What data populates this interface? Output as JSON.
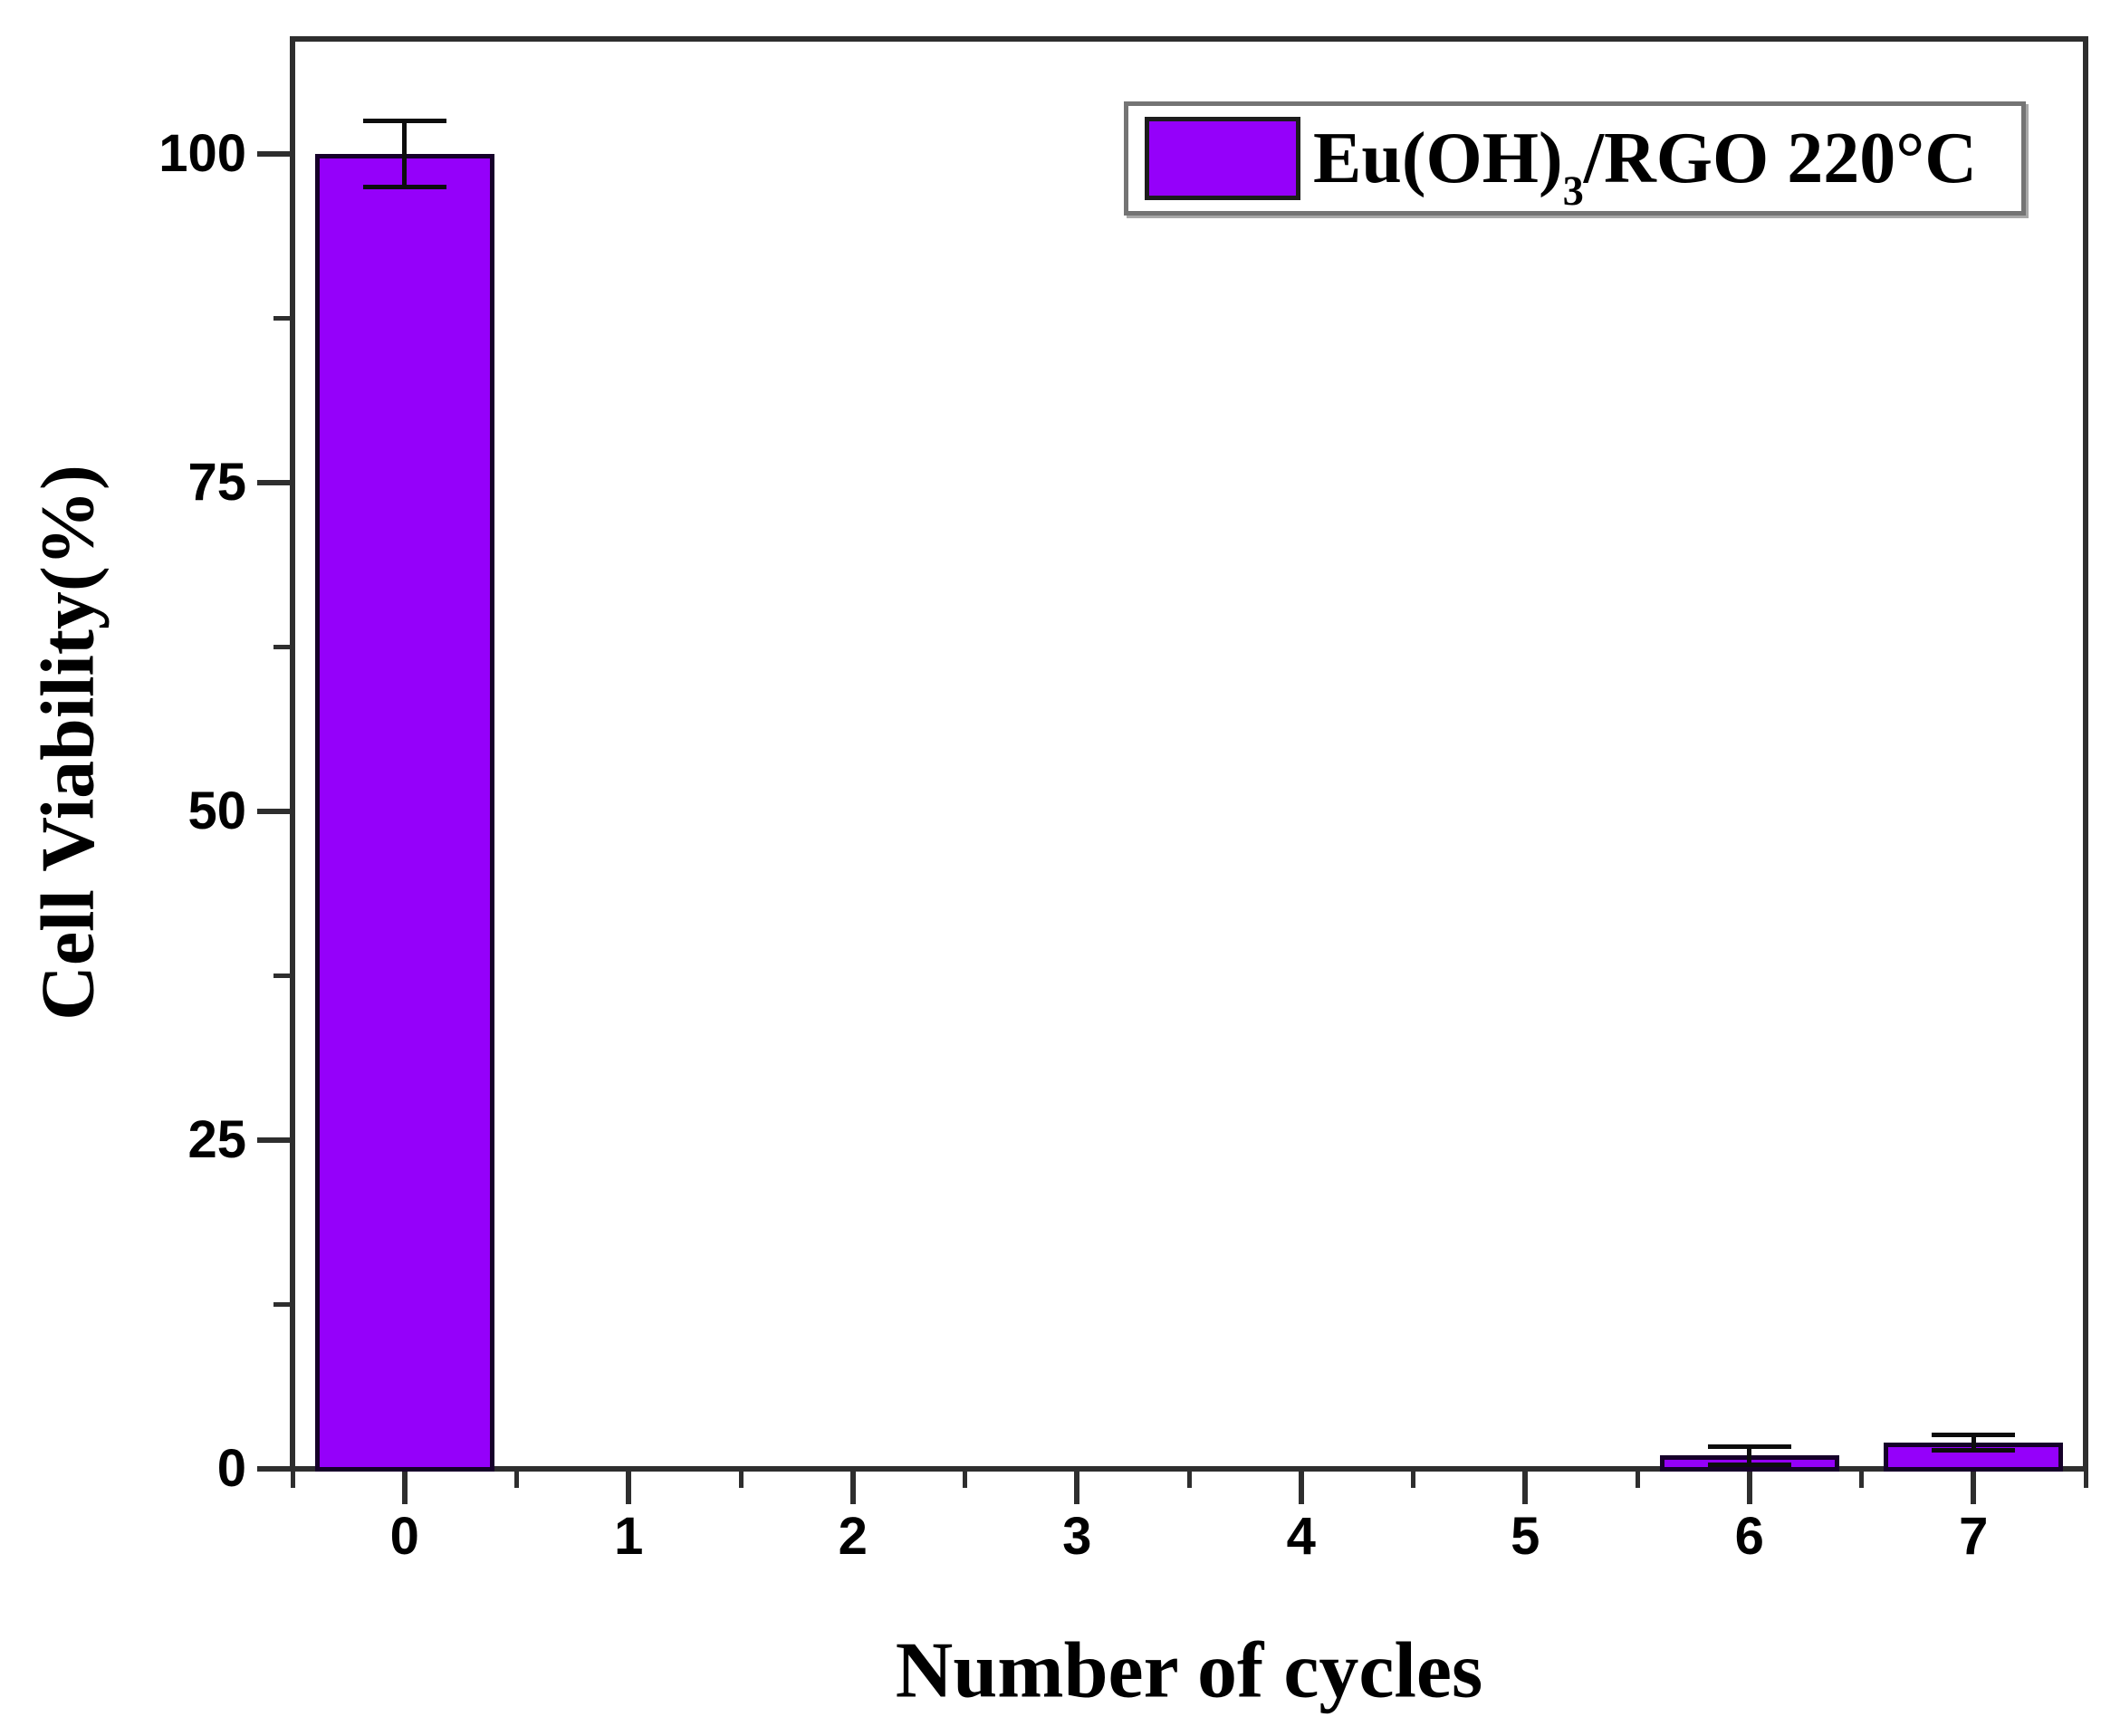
{
  "chart_data": {
    "type": "bar",
    "title": "",
    "categories": [
      0,
      1,
      2,
      3,
      4,
      5,
      6,
      7
    ],
    "series": [
      {
        "name": "Eu(OH)3/RGO 220°C",
        "values": [
          100,
          0,
          0,
          0,
          0,
          0,
          1,
          2
        ],
        "errors": [
          2.5,
          0,
          0,
          0,
          0,
          0,
          0.7,
          0.6
        ]
      }
    ],
    "xlabel": "Number of cycles",
    "ylabel": "Cell Viability(%)",
    "xlim": [
      -0.5,
      7.5
    ],
    "ylim": [
      0,
      108.75
    ],
    "yticks": [
      0,
      25,
      50,
      75,
      100
    ],
    "y_minor_interval": 12.5,
    "x_minor_interval": 0.5,
    "grid": false,
    "legend_position": "top-right",
    "bar_width_fraction": 0.8,
    "colors": {
      "bar_fill": "#9500fa",
      "bar_edge": "#16002a",
      "axis": "#2e2e2e",
      "error_bar": "#0d0d0d",
      "text": "#000000",
      "legend_border": "#747474",
      "background": "#ffffff"
    },
    "legend": {
      "prefix": "Eu(OH)",
      "subscript": "3",
      "suffix": "/RGO 220°C"
    }
  }
}
